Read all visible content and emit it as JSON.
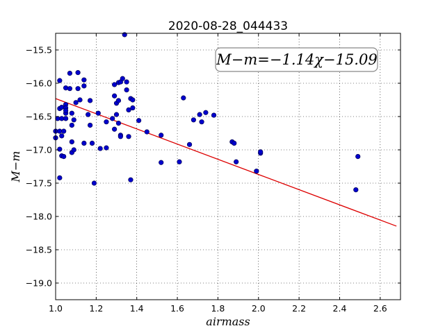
{
  "chart_data": {
    "type": "scatter",
    "title": "2020-08-28_044433",
    "xlabel": "airmass",
    "ylabel": "M−m",
    "xlim": [
      1.0,
      2.7
    ],
    "ylim": [
      -19.25,
      -15.25
    ],
    "x_ticks": [
      1.0,
      1.2,
      1.4,
      1.6,
      1.8,
      2.0,
      2.2,
      2.4,
      2.6
    ],
    "x_tick_labels": [
      "1.0",
      "1.2",
      "1.4",
      "1.6",
      "1.8",
      "2.0",
      "2.2",
      "2.4",
      "2.6"
    ],
    "y_ticks": [
      -15.5,
      -16.0,
      -16.5,
      -17.0,
      -17.5,
      -18.0,
      -18.5,
      -19.0
    ],
    "y_tick_labels": [
      "−15.5",
      "−16.0",
      "−16.5",
      "−17.0",
      "−17.5",
      "−18.0",
      "−18.5",
      "−19.0"
    ],
    "grid": true,
    "annotation": "M−m=−1.14χ−15.09",
    "fit": {
      "slope": -1.14,
      "intercept": -15.09,
      "x_range": [
        1.0,
        2.68
      ],
      "color": "#dd0000"
    },
    "points_color": "#0000cc",
    "points": [
      [
        1.0,
        -16.72
      ],
      [
        1.0,
        -16.82
      ],
      [
        1.01,
        -16.53
      ],
      [
        1.02,
        -16.38
      ],
      [
        1.02,
        -16.72
      ],
      [
        1.02,
        -16.99
      ],
      [
        1.02,
        -17.42
      ],
      [
        1.02,
        -15.96
      ],
      [
        1.03,
        -16.36
      ],
      [
        1.03,
        -16.53
      ],
      [
        1.03,
        -16.79
      ],
      [
        1.03,
        -17.09
      ],
      [
        1.04,
        -16.72
      ],
      [
        1.04,
        -17.1
      ],
      [
        1.05,
        -16.32
      ],
      [
        1.05,
        -16.37
      ],
      [
        1.05,
        -16.45
      ],
      [
        1.05,
        -16.53
      ],
      [
        1.05,
        -16.41
      ],
      [
        1.05,
        -16.07
      ],
      [
        1.07,
        -16.08
      ],
      [
        1.07,
        -15.85
      ],
      [
        1.08,
        -16.45
      ],
      [
        1.08,
        -16.63
      ],
      [
        1.08,
        -16.88
      ],
      [
        1.08,
        -17.04
      ],
      [
        1.09,
        -16.55
      ],
      [
        1.09,
        -17.0
      ],
      [
        1.1,
        -16.29
      ],
      [
        1.11,
        -15.84
      ],
      [
        1.11,
        -16.08
      ],
      [
        1.12,
        -16.25
      ],
      [
        1.14,
        -15.95
      ],
      [
        1.14,
        -16.04
      ],
      [
        1.14,
        -16.9
      ],
      [
        1.16,
        -16.47
      ],
      [
        1.17,
        -16.26
      ],
      [
        1.17,
        -16.63
      ],
      [
        1.18,
        -16.9
      ],
      [
        1.19,
        -17.5
      ],
      [
        1.21,
        -16.45
      ],
      [
        1.22,
        -16.98
      ],
      [
        1.25,
        -16.58
      ],
      [
        1.25,
        -16.97
      ],
      [
        1.28,
        -16.53
      ],
      [
        1.29,
        -16.69
      ],
      [
        1.29,
        -16.02
      ],
      [
        1.29,
        -16.19
      ],
      [
        1.3,
        -16.47
      ],
      [
        1.3,
        -16.3
      ],
      [
        1.31,
        -16.26
      ],
      [
        1.31,
        -15.99
      ],
      [
        1.31,
        -16.6
      ],
      [
        1.32,
        -15.98
      ],
      [
        1.32,
        -16.78
      ],
      [
        1.32,
        -16.8
      ],
      [
        1.33,
        -15.93
      ],
      [
        1.34,
        -15.27
      ],
      [
        1.35,
        -16.1
      ],
      [
        1.35,
        -15.98
      ],
      [
        1.36,
        -16.8
      ],
      [
        1.36,
        -16.4
      ],
      [
        1.37,
        -17.45
      ],
      [
        1.37,
        -16.23
      ],
      [
        1.38,
        -16.25
      ],
      [
        1.38,
        -16.37
      ],
      [
        1.41,
        -16.56
      ],
      [
        1.45,
        -16.73
      ],
      [
        1.52,
        -17.19
      ],
      [
        1.52,
        -16.78
      ],
      [
        1.61,
        -17.18
      ],
      [
        1.63,
        -16.22
      ],
      [
        1.66,
        -16.92
      ],
      [
        1.68,
        -16.55
      ],
      [
        1.71,
        -16.47
      ],
      [
        1.72,
        -16.58
      ],
      [
        1.74,
        -16.44
      ],
      [
        1.78,
        -16.48
      ],
      [
        1.87,
        -16.88
      ],
      [
        1.88,
        -16.9
      ],
      [
        1.89,
        -17.18
      ],
      [
        1.99,
        -17.32
      ],
      [
        2.01,
        -17.05
      ],
      [
        2.01,
        -17.03
      ],
      [
        2.48,
        -17.6
      ],
      [
        2.49,
        -17.1
      ]
    ]
  }
}
